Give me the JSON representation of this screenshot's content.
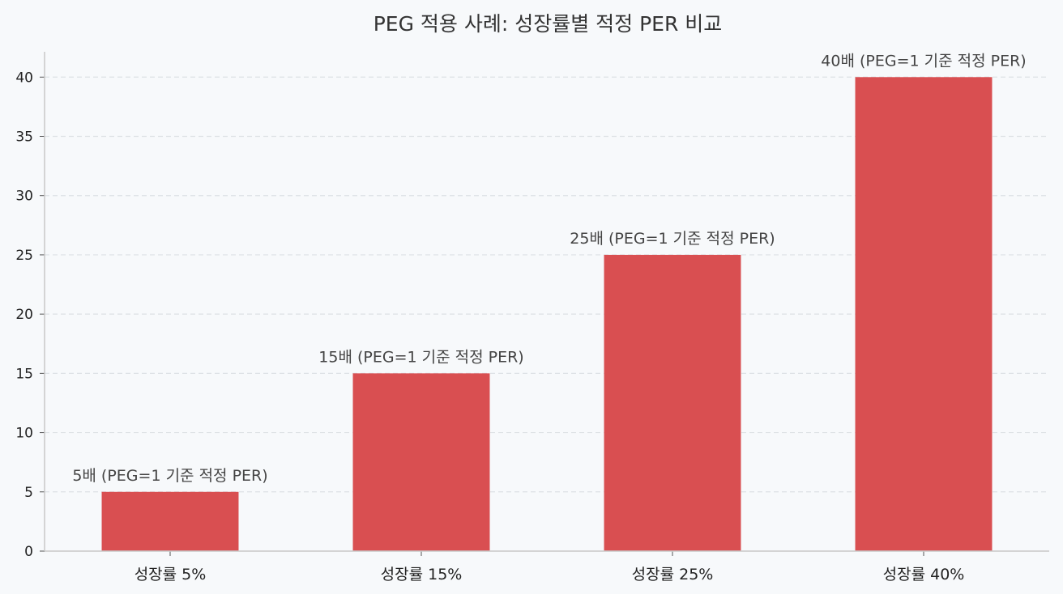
{
  "chart_data": {
    "type": "bar",
    "title": "PEG 적용 사례: 성장률별 적정 PER 비교",
    "xlabel": "",
    "ylabel": "",
    "categories": [
      "성장률 5%",
      "성장률 15%",
      "성장률 25%",
      "성장률 40%"
    ],
    "values": [
      5,
      15,
      25,
      40
    ],
    "data_labels": [
      "5배 (PEG=1 기준 적정 PER)",
      "15배 (PEG=1 기준 적정 PER)",
      "25배 (PEG=1 기준 적정 PER)",
      "40배 (PEG=1 기준 적정 PER)"
    ],
    "ylim": [
      0,
      42
    ],
    "yticks": [
      0,
      5,
      10,
      15,
      20,
      25,
      30,
      35,
      40
    ],
    "grid": true,
    "bar_color": "#d94f51"
  }
}
